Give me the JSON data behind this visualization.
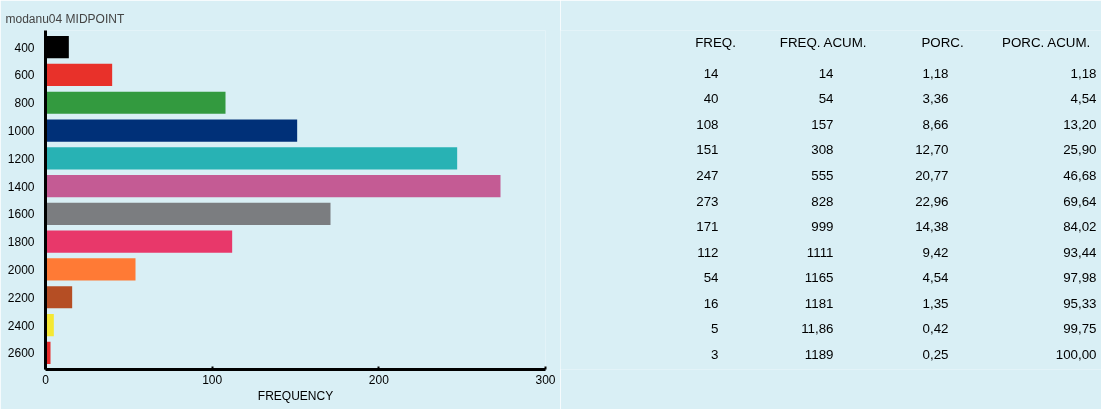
{
  "chart_data": [
    {
      "type": "bar",
      "orientation": "horizontal",
      "title": "modanu04 MIDPOINT",
      "xlabel": "FREQUENCY",
      "categories": [
        "400",
        "600",
        "800",
        "1000",
        "1200",
        "1400",
        "1600",
        "1800",
        "2000",
        "2200",
        "2400",
        "2600"
      ],
      "values": [
        14,
        40,
        108,
        151,
        247,
        273,
        171,
        112,
        54,
        16,
        5,
        3
      ],
      "colors": [
        "#000000",
        "#e8312a",
        "#339a3f",
        "#003078",
        "#28b2b4",
        "#c45b94",
        "#7b7d80",
        "#e8386a",
        "#ff7a35",
        "#b54e24",
        "#f5e833",
        "#e82a2a"
      ],
      "xlim": [
        0,
        300
      ],
      "xticks": [
        0,
        100,
        200,
        300
      ],
      "grid": false
    },
    {
      "type": "other",
      "categories": [
        "FREQ.",
        "FREQ. ACUM.",
        "PORC.",
        "PORC. ACUM."
      ],
      "annotations": [
        "14",
        "14",
        "1,18",
        "1,18",
        "40",
        "54",
        "3,36",
        "4,54",
        "108",
        "157",
        "8,66",
        "13,20",
        "151",
        "308",
        "12,70",
        "25,90",
        "247",
        "555",
        "20,77",
        "46,68",
        "273",
        "828",
        "22,96",
        "69,64",
        "171",
        "999",
        "14,38",
        "84,02",
        "112",
        "1111",
        "9,42",
        "93,44",
        "54",
        "1165",
        "4,54",
        "97,98",
        "16",
        "1181",
        "1,35",
        "95,33",
        "5",
        "11,86",
        "0,42",
        "99,75",
        "3",
        "1189",
        "0,25",
        "100,00"
      ]
    }
  ]
}
